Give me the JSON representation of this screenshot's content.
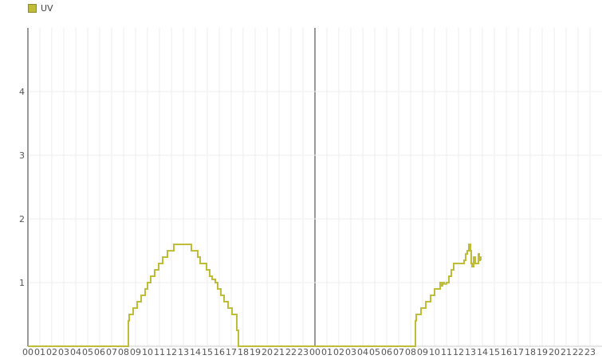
{
  "chart_data": {
    "type": "line",
    "title": "",
    "xlabel": "",
    "ylabel": "",
    "ylim": [
      0,
      5
    ],
    "y_ticks": [
      "1",
      "2",
      "3",
      "4"
    ],
    "x_tick_labels": [
      "00",
      "01",
      "02",
      "03",
      "04",
      "05",
      "06",
      "07",
      "08",
      "09",
      "10",
      "11",
      "12",
      "13",
      "14",
      "15",
      "16",
      "17",
      "18",
      "19",
      "20",
      "21",
      "22",
      "23"
    ],
    "days": 2,
    "grid": true,
    "legend_position": "top-left",
    "step": true,
    "series": [
      {
        "name": "UV",
        "color": "#bfbd37",
        "day1": [
          [
            "00:00",
            0
          ],
          [
            "08:20",
            0
          ],
          [
            "08:24",
            0.4
          ],
          [
            "08:28",
            0.5
          ],
          [
            "08:48",
            0.6
          ],
          [
            "09:08",
            0.7
          ],
          [
            "09:28",
            0.8
          ],
          [
            "09:48",
            0.9
          ],
          [
            "10:00",
            1.0
          ],
          [
            "10:16",
            1.1
          ],
          [
            "10:36",
            1.2
          ],
          [
            "10:56",
            1.3
          ],
          [
            "11:16",
            1.4
          ],
          [
            "11:40",
            1.5
          ],
          [
            "12:12",
            1.6
          ],
          [
            "13:40",
            1.5
          ],
          [
            "14:12",
            1.4
          ],
          [
            "14:24",
            1.3
          ],
          [
            "14:56",
            1.2
          ],
          [
            "15:12",
            1.1
          ],
          [
            "15:24",
            1.05
          ],
          [
            "15:40",
            1.0
          ],
          [
            "15:52",
            0.9
          ],
          [
            "16:08",
            0.8
          ],
          [
            "16:24",
            0.7
          ],
          [
            "16:44",
            0.6
          ],
          [
            "17:04",
            0.5
          ],
          [
            "17:28",
            0.25
          ],
          [
            "17:36",
            0
          ],
          [
            "24:00",
            0
          ]
        ],
        "day2": [
          [
            "00:00",
            0
          ],
          [
            "08:20",
            0
          ],
          [
            "08:24",
            0.4
          ],
          [
            "08:28",
            0.5
          ],
          [
            "08:52",
            0.6
          ],
          [
            "09:16",
            0.7
          ],
          [
            "09:40",
            0.8
          ],
          [
            "10:00",
            0.9
          ],
          [
            "10:28",
            1.0
          ],
          [
            "10:32",
            0.95
          ],
          [
            "10:40",
            1.0
          ],
          [
            "10:48",
            0.98
          ],
          [
            "11:00",
            1.0
          ],
          [
            "11:12",
            1.1
          ],
          [
            "11:24",
            1.2
          ],
          [
            "11:36",
            1.3
          ],
          [
            "12:20",
            1.3
          ],
          [
            "12:28",
            1.35
          ],
          [
            "12:36",
            1.45
          ],
          [
            "12:44",
            1.5
          ],
          [
            "12:52",
            1.6
          ],
          [
            "13:00",
            1.5
          ],
          [
            "13:04",
            1.3
          ],
          [
            "13:08",
            1.25
          ],
          [
            "13:16",
            1.4
          ],
          [
            "13:24",
            1.3
          ],
          [
            "13:36",
            1.3
          ],
          [
            "13:40",
            1.45
          ],
          [
            "13:44",
            1.35
          ],
          [
            "13:48",
            1.4
          ],
          [
            "13:52",
            1.35
          ]
        ]
      }
    ]
  }
}
